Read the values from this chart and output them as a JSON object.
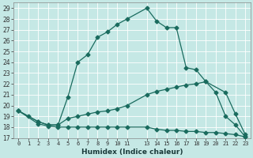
{
  "xlabel": "Humidex (Indice chaleur)",
  "bg_color": "#c5e8e5",
  "grid_color": "#b0d8d5",
  "line_color": "#1a6b5e",
  "xlim": [
    -0.5,
    23.5
  ],
  "ylim": [
    17,
    29.5
  ],
  "xticks": [
    0,
    1,
    2,
    3,
    4,
    5,
    6,
    7,
    8,
    9,
    10,
    11,
    13,
    14,
    15,
    16,
    17,
    18,
    19,
    20,
    21,
    22,
    23
  ],
  "xtick_labels": [
    "0",
    "1",
    "2",
    "3",
    "4",
    "5",
    "6",
    "7",
    "8",
    "9",
    "10",
    "11",
    "13",
    "14",
    "15",
    "16",
    "17",
    "18",
    "19",
    "20",
    "21",
    "22",
    "23"
  ],
  "yticks": [
    17,
    18,
    19,
    20,
    21,
    22,
    23,
    24,
    25,
    26,
    27,
    28,
    29
  ],
  "line1_x": [
    0,
    1,
    2,
    3,
    4,
    5,
    6,
    7,
    8,
    9,
    10,
    11,
    13,
    14,
    15,
    16,
    17,
    18,
    19,
    20,
    21,
    22,
    23
  ],
  "line1_y": [
    19.5,
    19.0,
    18.5,
    18.2,
    18.2,
    20.8,
    24.0,
    24.7,
    26.3,
    26.8,
    27.5,
    28.0,
    29.0,
    27.8,
    27.2,
    27.2,
    23.5,
    23.3,
    22.2,
    21.2,
    19.0,
    18.2,
    17.1
  ],
  "line2_x": [
    0,
    2,
    3,
    4,
    5,
    6,
    7,
    8,
    9,
    10,
    11,
    13,
    14,
    15,
    16,
    17,
    18,
    19,
    21,
    22,
    23
  ],
  "line2_y": [
    19.5,
    18.5,
    18.2,
    18.2,
    18.8,
    19.0,
    19.2,
    19.4,
    19.5,
    19.7,
    20.0,
    21.0,
    21.3,
    21.5,
    21.7,
    21.9,
    22.0,
    22.2,
    21.2,
    19.2,
    17.3
  ],
  "line3_x": [
    0,
    2,
    3,
    4,
    5,
    6,
    7,
    8,
    9,
    10,
    11,
    13,
    14,
    15,
    16,
    17,
    18,
    19,
    20,
    21,
    22,
    23
  ],
  "line3_y": [
    19.5,
    18.3,
    18.1,
    18.0,
    18.0,
    18.0,
    18.0,
    18.0,
    18.0,
    18.0,
    18.0,
    18.0,
    17.8,
    17.7,
    17.7,
    17.6,
    17.6,
    17.5,
    17.5,
    17.4,
    17.3,
    17.1
  ]
}
